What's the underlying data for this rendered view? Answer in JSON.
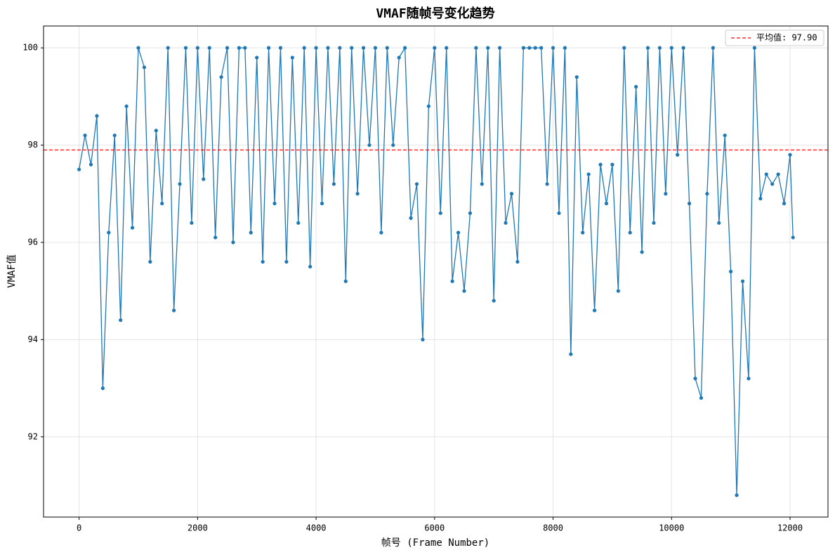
{
  "chart_data": {
    "type": "line",
    "title": "VMAF随帧号变化趋势",
    "x_label": "帧号 (Frame Number)",
    "y_label": "VMAF值",
    "x": [
      0,
      100,
      200,
      300,
      400,
      500,
      600,
      700,
      800,
      900,
      1000,
      1100,
      1200,
      1300,
      1400,
      1500,
      1600,
      1700,
      1800,
      1900,
      2000,
      2100,
      2200,
      2300,
      2400,
      2500,
      2600,
      2700,
      2800,
      2900,
      3000,
      3100,
      3200,
      3300,
      3400,
      3500,
      3600,
      3700,
      3800,
      3900,
      4000,
      4100,
      4200,
      4300,
      4400,
      4500,
      4600,
      4700,
      4800,
      4900,
      5000,
      5100,
      5200,
      5300,
      5400,
      5500,
      5600,
      5700,
      5800,
      5900,
      6000,
      6100,
      6200,
      6300,
      6400,
      6500,
      6600,
      6700,
      6800,
      6900,
      7000,
      7100,
      7200,
      7300,
      7400,
      7500,
      7600,
      7700,
      7800,
      7900,
      8000,
      8100,
      8200,
      8300,
      8400,
      8500,
      8600,
      8700,
      8800,
      8900,
      9000,
      9100,
      9200,
      9300,
      9400,
      9500,
      9600,
      9700,
      9800,
      9900,
      10000,
      10100,
      10200,
      10300,
      10400,
      10500,
      10600,
      10700,
      10800,
      10900,
      11000,
      11100,
      11200,
      11300,
      11400,
      11500,
      11600,
      11700,
      11800,
      11900,
      12000,
      12050
    ],
    "series": [
      {
        "name": "VMAF",
        "color": "#1f77b4",
        "values": [
          97.5,
          98.2,
          97.6,
          98.6,
          93.0,
          96.2,
          98.2,
          94.4,
          98.8,
          96.3,
          100,
          99.6,
          95.6,
          98.3,
          96.8,
          100,
          94.6,
          97.2,
          100,
          96.4,
          100,
          97.3,
          100,
          96.1,
          99.4,
          100,
          96.0,
          100,
          100,
          96.2,
          99.8,
          95.6,
          100,
          96.8,
          100,
          95.6,
          99.8,
          96.4,
          100,
          95.5,
          100,
          96.8,
          100,
          97.2,
          100,
          95.2,
          100,
          97.0,
          100,
          98.0,
          100,
          96.2,
          100,
          98.0,
          99.8,
          100,
          96.5,
          97.2,
          94.0,
          98.8,
          100,
          96.6,
          100,
          95.2,
          96.2,
          95.0,
          96.6,
          100,
          97.2,
          100,
          94.8,
          100,
          96.4,
          97.0,
          95.6,
          100,
          100,
          100,
          100,
          97.2,
          100,
          96.6,
          100,
          93.7,
          99.4,
          96.2,
          97.4,
          94.6,
          97.6,
          96.8,
          97.6,
          95.0,
          100,
          96.2,
          99.2,
          95.8,
          100,
          96.4,
          100,
          97.0,
          100,
          97.8,
          100,
          96.8,
          93.2,
          92.8,
          97.0,
          100,
          96.4,
          98.2,
          95.4,
          90.8,
          95.2,
          93.2,
          100,
          96.9,
          97.4,
          97.2,
          97.4,
          96.8,
          97.8,
          96.1
        ]
      }
    ],
    "mean_line": {
      "name": "平均值: 97.90",
      "value": 97.9,
      "color": "#ff0000"
    },
    "xlim": [
      -600,
      12640
    ],
    "ylim": [
      90.35,
      100.45
    ],
    "xticks": [
      0,
      2000,
      4000,
      6000,
      8000,
      10000,
      12000
    ],
    "yticks": [
      92,
      94,
      96,
      98,
      100
    ],
    "grid": true,
    "legend": "upper right"
  }
}
